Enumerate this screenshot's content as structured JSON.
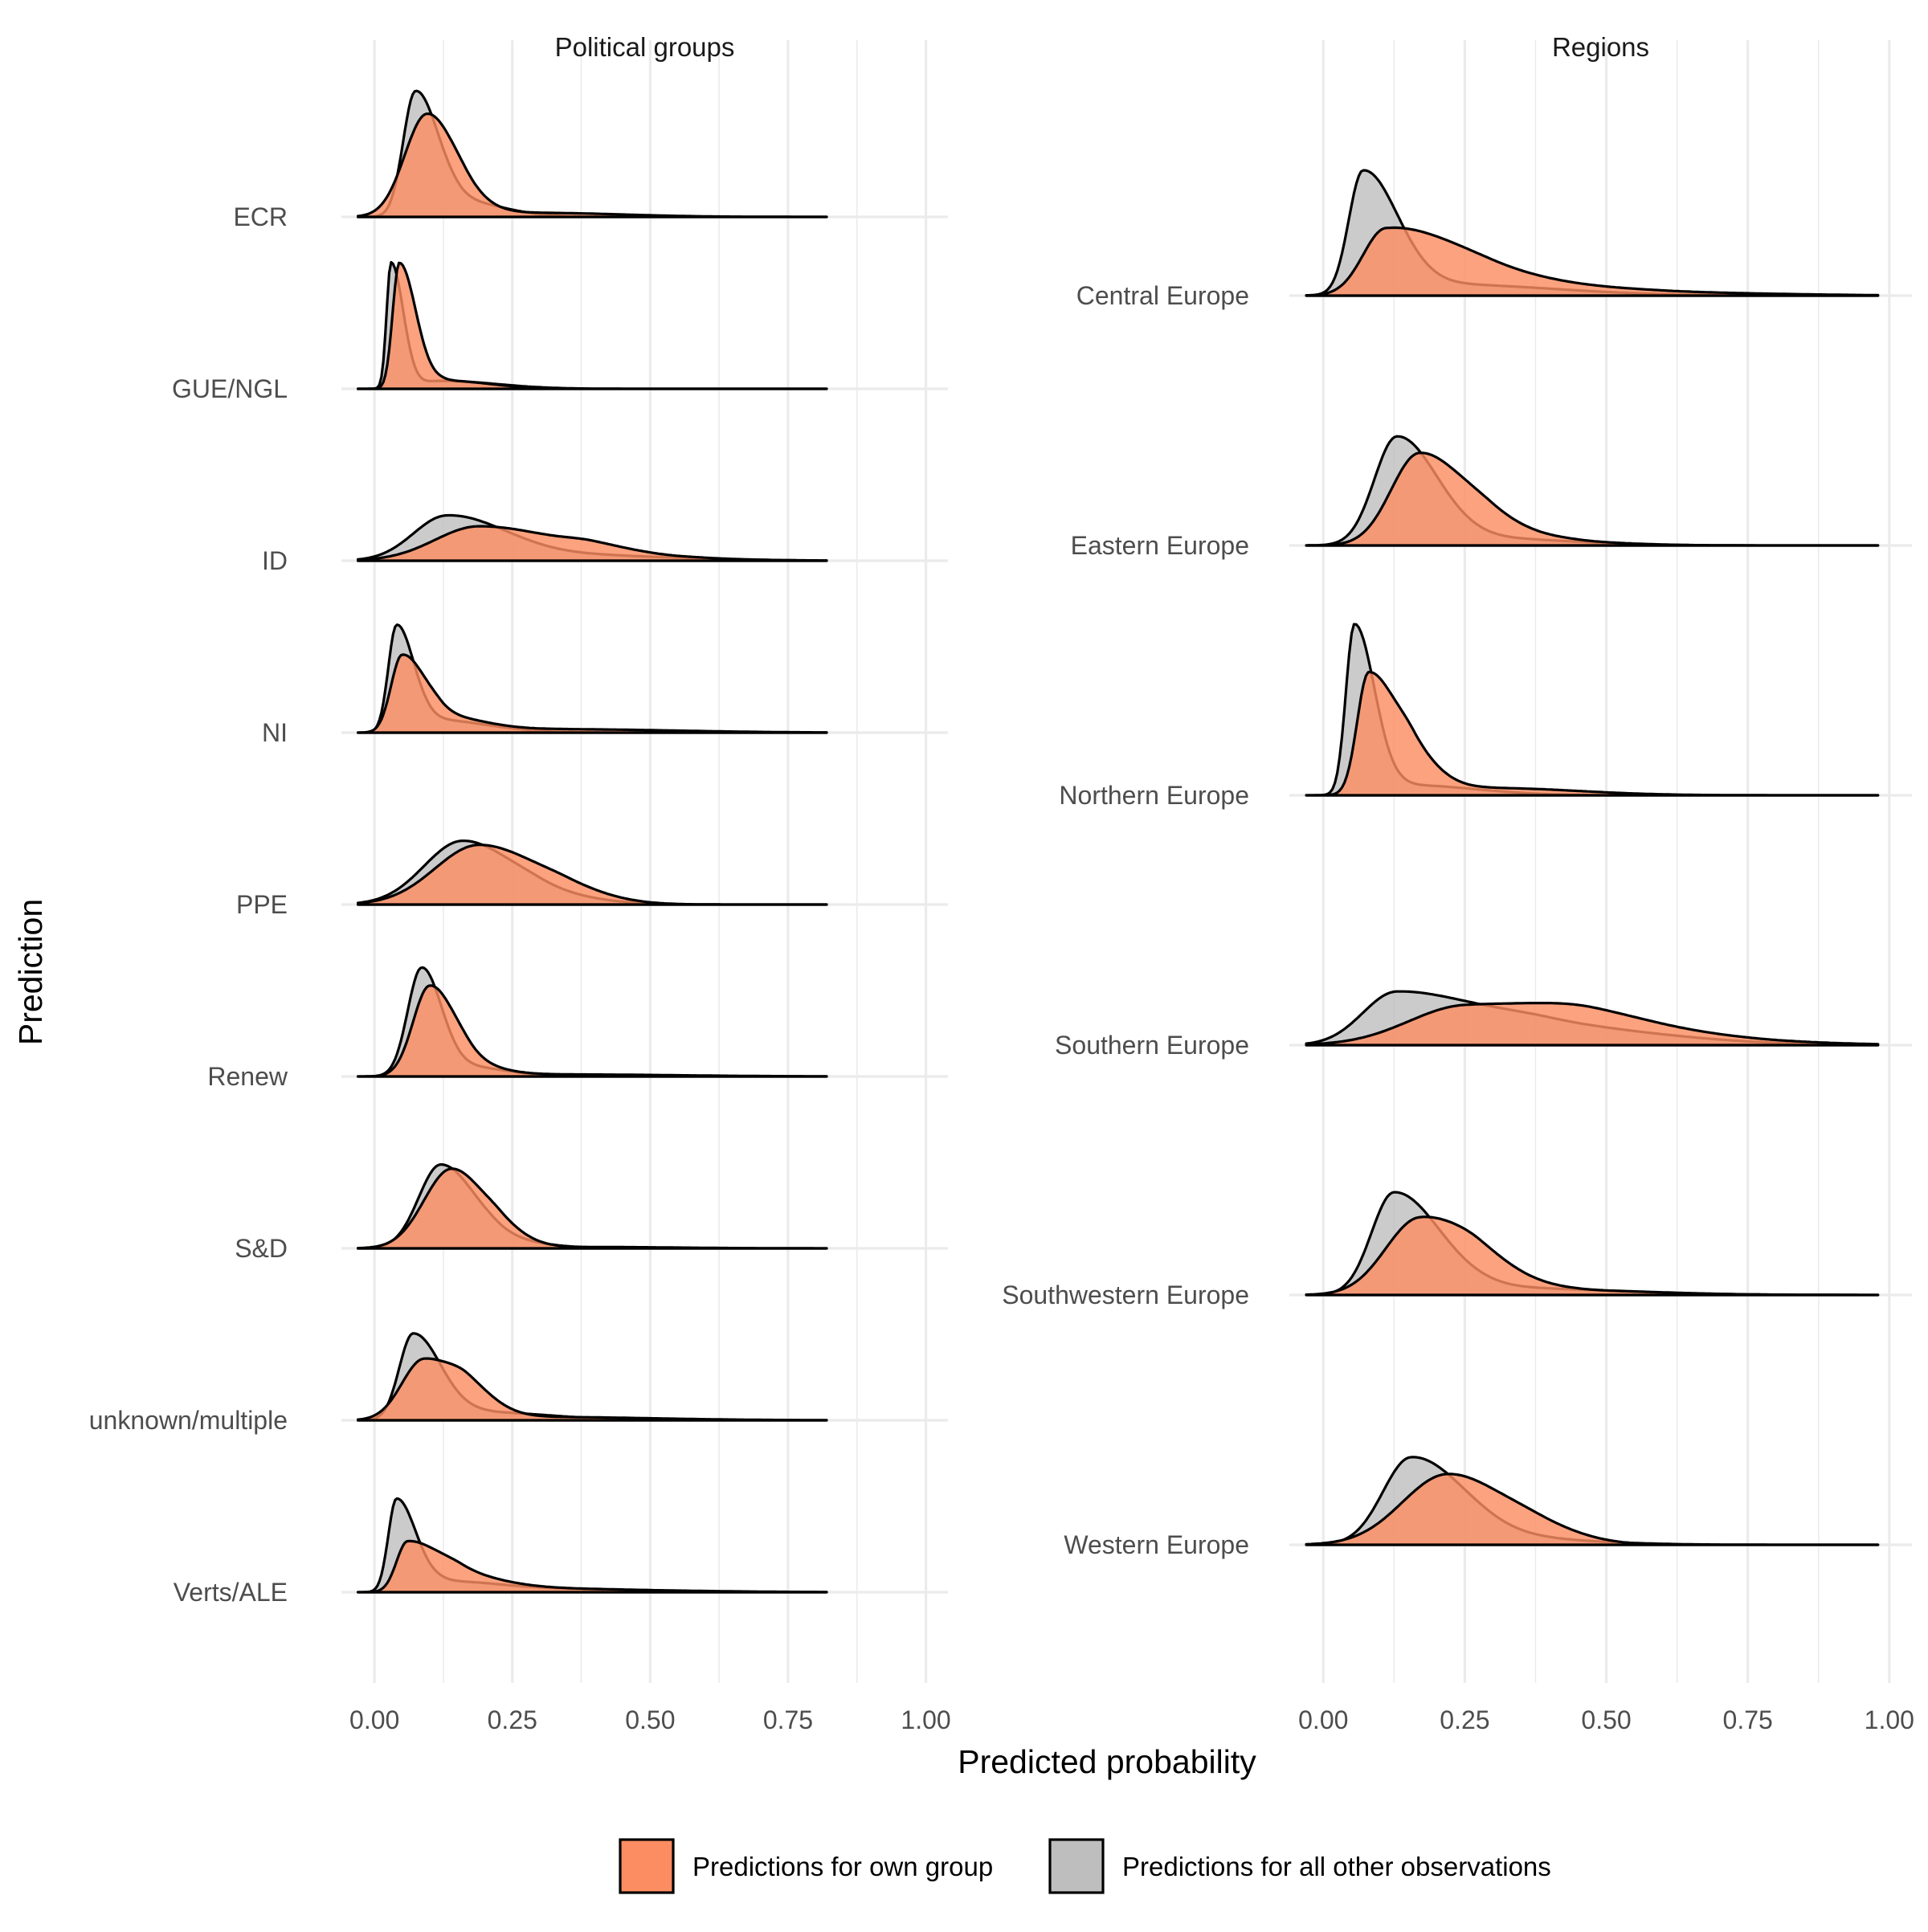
{
  "chart_data": {
    "type": "ridgeline density",
    "xlabel": "Predicted probability",
    "ylabel": "Prediction",
    "xlim": [
      -0.06,
      1.04
    ],
    "x_ticks": [
      "0.00",
      "0.25",
      "0.50",
      "0.75",
      "1.00"
    ],
    "x_tick_values": [
      0,
      0.25,
      0.5,
      0.75,
      1.0
    ],
    "grid": true,
    "legend": {
      "placement": "bottom",
      "entries": [
        {
          "key": "own",
          "label": "Predictions for own group",
          "color": "#FC8D62"
        },
        {
          "key": "other",
          "label": "Predictions for all other observations",
          "color": "#BEBEBE"
        }
      ]
    },
    "panels": [
      {
        "title": "Political groups",
        "x_max_data": 0.82,
        "ridges": [
          {
            "label": "ECR",
            "own": {
              "peaks": [
                [
                  0.095,
                  0.77,
                  0.04,
                  0.05
                ],
                [
                  0.165,
                  0.07,
                  0.03,
                  0.05
                ],
                [
                  0.3,
                  0.03,
                  0.1,
                  0.15
                ]
              ]
            },
            "other": {
              "peaks": [
                [
                  0.074,
                  0.93,
                  0.022,
                  0.04
                ],
                [
                  0.15,
                  0.12,
                  0.04,
                  0.08
                ]
              ]
            }
          },
          {
            "label": "GUE/NGL",
            "own": {
              "peaks": [
                [
                  0.045,
                  0.95,
                  0.012,
                  0.03
                ],
                [
                  0.13,
                  0.06,
                  0.03,
                  0.08
                ]
              ]
            },
            "other": {
              "peaks": [
                [
                  0.03,
                  0.95,
                  0.008,
                  0.022
                ],
                [
                  0.12,
                  0.06,
                  0.04,
                  0.1
                ]
              ]
            }
          },
          {
            "label": "ID",
            "own": {
              "peaks": [
                [
                  0.19,
                  0.26,
                  0.08,
                  0.15
                ],
                [
                  0.4,
                  0.05,
                  0.05,
                  0.1
                ],
                [
                  0.6,
                  0.01,
                  0.05,
                  0.1
                ]
              ]
            },
            "other": {
              "peaks": [
                [
                  0.13,
                  0.33,
                  0.06,
                  0.1
                ],
                [
                  0.3,
                  0.05,
                  0.1,
                  0.2
                ]
              ]
            }
          },
          {
            "label": "NI",
            "own": {
              "peaks": [
                [
                  0.05,
                  0.58,
                  0.02,
                  0.04
                ],
                [
                  0.12,
                  0.12,
                  0.03,
                  0.08
                ],
                [
                  0.35,
                  0.025,
                  0.1,
                  0.2
                ]
              ]
            },
            "other": {
              "peaks": [
                [
                  0.04,
                  0.8,
                  0.015,
                  0.03
                ],
                [
                  0.1,
                  0.1,
                  0.03,
                  0.1
                ]
              ]
            }
          },
          {
            "label": "PPE",
            "own": {
              "peaks": [
                [
                  0.19,
                  0.45,
                  0.08,
                  0.11
                ],
                [
                  0.35,
                  0.05,
                  0.05,
                  0.08
                ]
              ]
            },
            "other": {
              "peaks": [
                [
                  0.16,
                  0.48,
                  0.07,
                  0.09
                ],
                [
                  0.3,
                  0.06,
                  0.05,
                  0.1
                ]
              ]
            }
          },
          {
            "label": "Renew",
            "own": {
              "peaks": [
                [
                  0.1,
                  0.68,
                  0.03,
                  0.045
                ],
                [
                  0.17,
                  0.08,
                  0.03,
                  0.06
                ],
                [
                  0.35,
                  0.015,
                  0.1,
                  0.2
                ]
              ]
            },
            "other": {
              "peaks": [
                [
                  0.085,
                  0.8,
                  0.025,
                  0.035
                ],
                [
                  0.15,
                  0.08,
                  0.04,
                  0.08
                ]
              ]
            }
          },
          {
            "label": "S&D",
            "own": {
              "peaks": [
                [
                  0.14,
                  0.6,
                  0.05,
                  0.06
                ],
                [
                  0.23,
                  0.08,
                  0.03,
                  0.05
                ],
                [
                  0.4,
                  0.01,
                  0.1,
                  0.15
                ]
              ]
            },
            "other": {
              "peaks": [
                [
                  0.12,
                  0.63,
                  0.04,
                  0.06
                ],
                [
                  0.22,
                  0.06,
                  0.04,
                  0.08
                ]
              ]
            }
          },
          {
            "label": "unknown/multiple",
            "own": {
              "peaks": [
                [
                  0.09,
                  0.46,
                  0.04,
                  0.07
                ],
                [
                  0.17,
                  0.1,
                  0.03,
                  0.05
                ],
                [
                  0.3,
                  0.025,
                  0.1,
                  0.2
                ]
              ]
            },
            "other": {
              "peaks": [
                [
                  0.07,
                  0.65,
                  0.025,
                  0.05
                ],
                [
                  0.2,
                  0.06,
                  0.06,
                  0.12
                ]
              ]
            }
          },
          {
            "label": "Verts/ALE",
            "own": {
              "peaks": [
                [
                  0.06,
                  0.38,
                  0.02,
                  0.06
                ],
                [
                  0.16,
                  0.11,
                  0.04,
                  0.08
                ],
                [
                  0.35,
                  0.025,
                  0.1,
                  0.15
                ]
              ]
            },
            "other": {
              "peaks": [
                [
                  0.04,
                  0.7,
                  0.015,
                  0.035
                ],
                [
                  0.13,
                  0.08,
                  0.04,
                  0.1
                ],
                [
                  0.35,
                  0.02,
                  0.1,
                  0.2
                ]
              ]
            }
          }
        ]
      },
      {
        "title": "Regions",
        "x_max_data": 0.98,
        "ridges": [
          {
            "label": "Central Europe",
            "own": {
              "peaks": [
                [
                  0.11,
                  0.45,
                  0.04,
                  0.12
                ],
                [
                  0.3,
                  0.12,
                  0.1,
                  0.15
                ],
                [
                  0.6,
                  0.02,
                  0.1,
                  0.2
                ]
              ]
            },
            "other": {
              "peaks": [
                [
                  0.07,
                  0.85,
                  0.025,
                  0.06
                ],
                [
                  0.2,
                  0.08,
                  0.08,
                  0.2
                ]
              ]
            }
          },
          {
            "label": "Eastern Europe",
            "own": {
              "peaks": [
                [
                  0.17,
                  0.64,
                  0.05,
                  0.08
                ],
                [
                  0.3,
                  0.12,
                  0.05,
                  0.08
                ],
                [
                  0.45,
                  0.02,
                  0.05,
                  0.1
                ]
              ]
            },
            "other": {
              "peaks": [
                [
                  0.13,
                  0.75,
                  0.04,
                  0.07
                ],
                [
                  0.28,
                  0.05,
                  0.08,
                  0.15
                ]
              ]
            }
          },
          {
            "label": "Northern Europe",
            "own": {
              "peaks": [
                [
                  0.08,
                  0.85,
                  0.02,
                  0.05
                ],
                [
                  0.16,
                  0.2,
                  0.03,
                  0.05
                ],
                [
                  0.3,
                  0.05,
                  0.08,
                  0.15
                ]
              ]
            },
            "other": {
              "peaks": [
                [
                  0.055,
                  1.18,
                  0.015,
                  0.035
                ],
                [
                  0.15,
                  0.07,
                  0.05,
                  0.12
                ]
              ]
            }
          },
          {
            "label": "Southern Europe",
            "own": {
              "peaks": [
                [
                  0.25,
                  0.27,
                  0.1,
                  0.18
                ],
                [
                  0.48,
                  0.14,
                  0.1,
                  0.15
                ],
                [
                  0.75,
                  0.02,
                  0.1,
                  0.15
                ]
              ]
            },
            "other": {
              "peaks": [
                [
                  0.13,
                  0.37,
                  0.06,
                  0.15
                ],
                [
                  0.4,
                  0.12,
                  0.1,
                  0.2
                ]
              ]
            }
          },
          {
            "label": "Southwestern Europe",
            "own": {
              "peaks": [
                [
                  0.17,
                  0.53,
                  0.06,
                  0.09
                ],
                [
                  0.28,
                  0.12,
                  0.05,
                  0.08
                ],
                [
                  0.45,
                  0.03,
                  0.08,
                  0.15
                ]
              ]
            },
            "other": {
              "peaks": [
                [
                  0.125,
                  0.71,
                  0.04,
                  0.08
                ],
                [
                  0.3,
                  0.05,
                  0.08,
                  0.2
                ]
              ]
            }
          },
          {
            "label": "Western Europe",
            "own": {
              "peaks": [
                [
                  0.22,
                  0.49,
                  0.08,
                  0.1
                ],
                [
                  0.38,
                  0.08,
                  0.06,
                  0.08
                ]
              ]
            },
            "other": {
              "peaks": [
                [
                  0.155,
                  0.6,
                  0.05,
                  0.09
                ],
                [
                  0.3,
                  0.05,
                  0.08,
                  0.15
                ]
              ]
            }
          }
        ]
      }
    ]
  }
}
